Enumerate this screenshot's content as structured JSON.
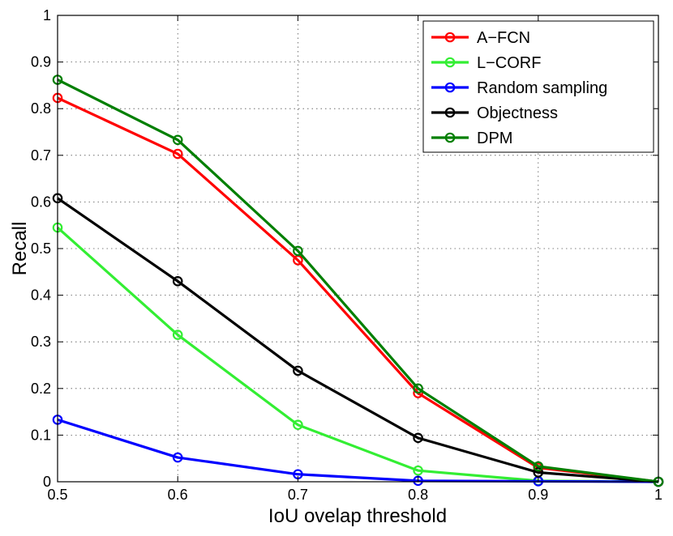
{
  "chart_data": {
    "type": "line",
    "title": "",
    "xlabel": "IoU ovelap threshold",
    "ylabel": "Recall",
    "x": [
      0.5,
      0.6,
      0.7,
      0.8,
      0.9,
      1.0
    ],
    "xlim": [
      0.5,
      1.0
    ],
    "ylim": [
      0,
      1
    ],
    "xticks": [
      "0.5",
      "0.6",
      "0.7",
      "0.8",
      "0.9",
      "1"
    ],
    "yticks": [
      "0",
      "0.1",
      "0.2",
      "0.3",
      "0.4",
      "0.5",
      "0.6",
      "0.7",
      "0.8",
      "0.9",
      "1"
    ],
    "grid": true,
    "legend_position": "top-right",
    "series": [
      {
        "name": "A−FCN",
        "color": "#ff0000",
        "values": [
          0.823,
          0.703,
          0.475,
          0.19,
          0.03,
          0.0
        ]
      },
      {
        "name": "L−CORF",
        "color": "#33ee33",
        "values": [
          0.545,
          0.315,
          0.122,
          0.024,
          0.002,
          0.0
        ]
      },
      {
        "name": "Random sampling",
        "color": "#0000ff",
        "values": [
          0.133,
          0.052,
          0.016,
          0.002,
          0.001,
          0.0
        ]
      },
      {
        "name": "Objectness",
        "color": "#000000",
        "values": [
          0.608,
          0.43,
          0.238,
          0.094,
          0.02,
          0.0
        ]
      },
      {
        "name": "DPM",
        "color": "#007f00",
        "values": [
          0.862,
          0.733,
          0.495,
          0.2,
          0.033,
          0.0
        ]
      }
    ]
  }
}
